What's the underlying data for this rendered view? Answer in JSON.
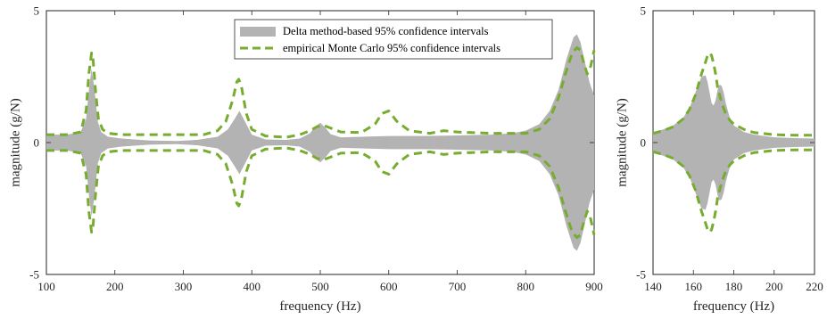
{
  "chart_data": [
    {
      "type": "area",
      "xlabel": "frequency (Hz)",
      "ylabel": "magnitude (g/N)",
      "xlim": [
        100,
        900
      ],
      "ylim": [
        -5,
        5
      ],
      "xticks": [
        "100",
        "200",
        "300",
        "400",
        "500",
        "600",
        "700",
        "800",
        "900"
      ],
      "yticks": [
        "-5",
        "0",
        "5"
      ],
      "legend": {
        "placement": "top-center-right",
        "entries": [
          {
            "label": "Delta method-based 95% confidence intervals",
            "style": "filled-band",
            "color": "#b3b3b3"
          },
          {
            "label": "empirical Monte Carlo 95% confidence intervals",
            "style": "dashed-line",
            "color": "#77ac30"
          }
        ]
      },
      "series": [
        {
          "name": "Delta method-based 95% confidence intervals",
          "kind": "symmetric-band",
          "color": "#b3b3b3",
          "x": [
            100,
            130,
            150,
            158,
            163,
            166,
            170,
            175,
            180,
            190,
            210,
            250,
            290,
            320,
            350,
            365,
            375,
            382,
            390,
            400,
            420,
            450,
            470,
            485,
            492,
            500,
            508,
            515,
            530,
            560,
            600,
            650,
            700,
            750,
            780,
            800,
            820,
            835,
            848,
            860,
            870,
            875,
            880,
            887,
            893,
            897,
            900
          ],
          "upper": [
            0.3,
            0.3,
            0.4,
            0.9,
            2.2,
            2.8,
            2.1,
            0.8,
            0.4,
            0.22,
            0.15,
            0.08,
            0.06,
            0.1,
            0.22,
            0.5,
            0.9,
            1.2,
            0.8,
            0.3,
            0.12,
            0.1,
            0.15,
            0.35,
            0.6,
            0.75,
            0.55,
            0.32,
            0.2,
            0.22,
            0.25,
            0.25,
            0.27,
            0.3,
            0.35,
            0.45,
            0.7,
            1.2,
            2.0,
            3.2,
            4.0,
            4.1,
            3.8,
            3.0,
            2.3,
            2.0,
            1.8
          ]
        },
        {
          "name": "empirical Monte Carlo 95% confidence intervals",
          "kind": "symmetric-dashed",
          "color": "#77ac30",
          "x": [
            100,
            130,
            150,
            158,
            162,
            166,
            168,
            172,
            176,
            182,
            190,
            210,
            250,
            300,
            330,
            350,
            362,
            372,
            378,
            381,
            385,
            392,
            400,
            420,
            450,
            470,
            485,
            495,
            505,
            515,
            530,
            560,
            580,
            590,
            600,
            612,
            630,
            660,
            680,
            700,
            750,
            800,
            820,
            835,
            848,
            858,
            868,
            875,
            880,
            885,
            890,
            895,
            900
          ],
          "upper": [
            0.3,
            0.3,
            0.4,
            1.2,
            2.6,
            3.4,
            3.2,
            1.9,
            0.9,
            0.5,
            0.35,
            0.3,
            0.3,
            0.3,
            0.3,
            0.45,
            0.8,
            1.6,
            2.3,
            2.4,
            2.1,
            1.1,
            0.5,
            0.25,
            0.2,
            0.3,
            0.45,
            0.6,
            0.65,
            0.55,
            0.4,
            0.38,
            0.7,
            1.1,
            1.2,
            0.8,
            0.45,
            0.35,
            0.45,
            0.4,
            0.35,
            0.35,
            0.5,
            0.9,
            1.7,
            2.6,
            3.4,
            3.6,
            3.5,
            3.0,
            2.6,
            2.9,
            3.5
          ]
        }
      ]
    },
    {
      "type": "area",
      "xlabel": "frequency (Hz)",
      "ylabel": "magnitude (g/N)",
      "xlim": [
        140,
        220
      ],
      "ylim": [
        -5,
        5
      ],
      "xticks": [
        "140",
        "160",
        "180",
        "200",
        "220"
      ],
      "yticks": [
        "-5",
        "0",
        "5"
      ],
      "series": [
        {
          "name": "Delta method-based 95% confidence intervals",
          "kind": "symmetric-band",
          "color": "#b3b3b3",
          "x": [
            140,
            145,
            150,
            155,
            158,
            161,
            164,
            166,
            167,
            168,
            169,
            170,
            171,
            172,
            173,
            174,
            175,
            176,
            178,
            180,
            185,
            190,
            200,
            210,
            220
          ],
          "upper": [
            0.38,
            0.5,
            0.65,
            0.95,
            1.3,
            1.9,
            2.5,
            2.55,
            2.3,
            1.9,
            1.5,
            1.4,
            1.6,
            2.0,
            2.2,
            2.15,
            1.9,
            1.5,
            0.95,
            0.65,
            0.4,
            0.3,
            0.2,
            0.17,
            0.15
          ]
        },
        {
          "name": "empirical Monte Carlo 95% confidence intervals",
          "kind": "symmetric-dashed",
          "color": "#77ac30",
          "x": [
            140,
            145,
            150,
            155,
            158,
            161,
            164,
            166,
            167,
            168,
            169,
            170,
            171,
            172,
            174,
            176,
            178,
            180,
            185,
            190,
            200,
            210,
            220
          ],
          "upper": [
            0.35,
            0.45,
            0.6,
            0.9,
            1.25,
            1.8,
            2.6,
            3.05,
            3.3,
            3.4,
            3.3,
            3.0,
            2.6,
            2.1,
            1.5,
            1.1,
            0.85,
            0.7,
            0.5,
            0.38,
            0.3,
            0.28,
            0.28
          ]
        }
      ]
    }
  ]
}
